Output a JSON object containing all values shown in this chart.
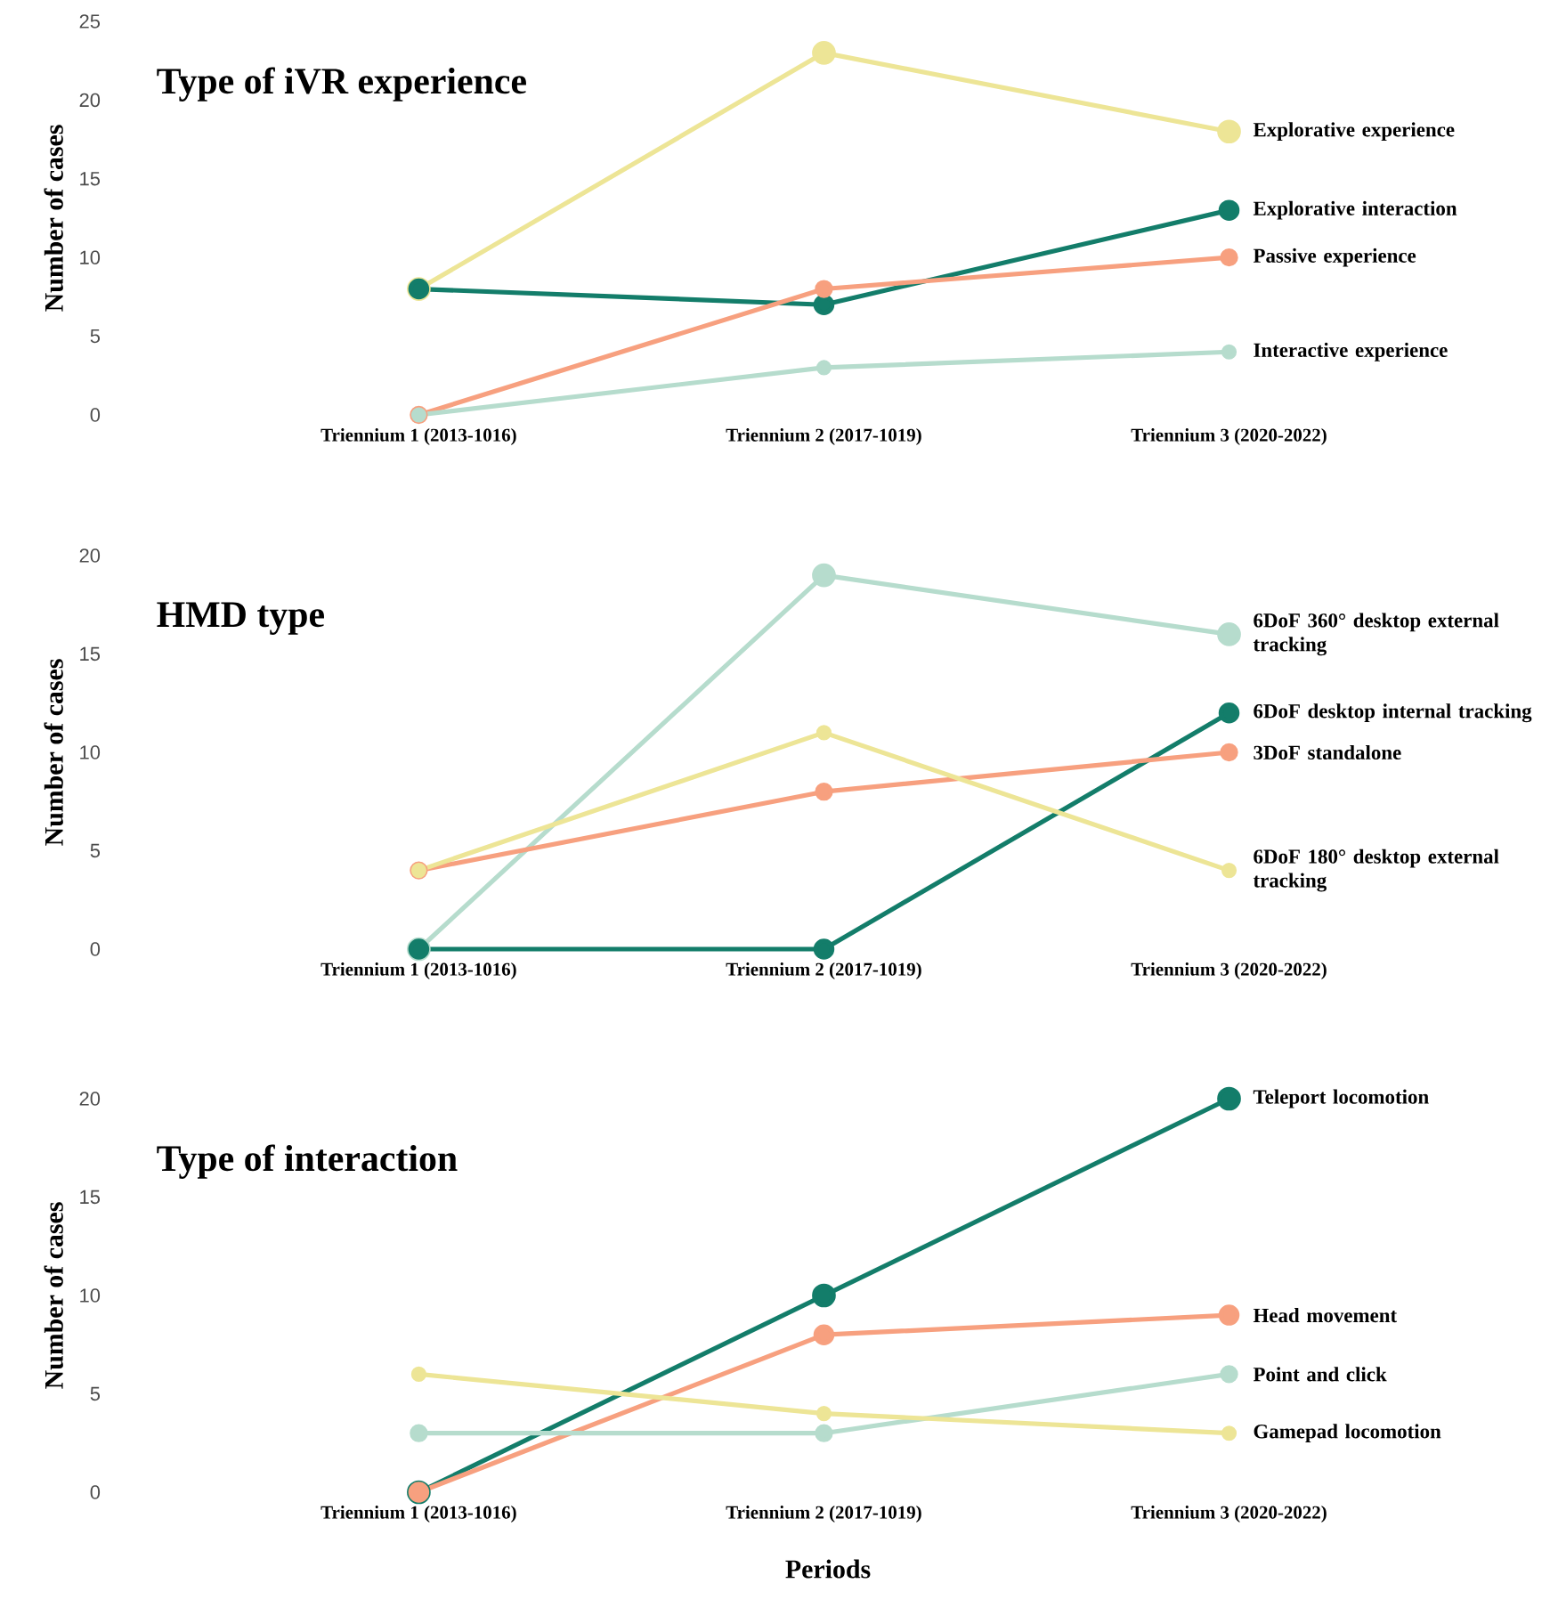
{
  "chart_data": [
    {
      "type": "line",
      "title": "Type of iVR experience",
      "ylabel": "Number of cases",
      "categories": [
        "Triennium 1 (2013-1016)",
        "Triennium 2 (2017-1019)",
        "Triennium 3 (2020-2022)"
      ],
      "ylim": [
        0,
        25
      ],
      "yticks": [
        0,
        5,
        10,
        15,
        20,
        25
      ],
      "marker": "circle",
      "series": [
        {
          "name": "Explorative experience",
          "color": "#ede596",
          "values": [
            8,
            23,
            18
          ]
        },
        {
          "name": "Explorative interaction",
          "color": "#137d6a",
          "values": [
            8,
            7,
            13
          ]
        },
        {
          "name": "Passive experience",
          "color": "#f7a07f",
          "values": [
            0,
            8,
            10
          ]
        },
        {
          "name": "Interactive experience",
          "color": "#b6dccd",
          "values": [
            0,
            3,
            4
          ]
        }
      ]
    },
    {
      "type": "line",
      "title": "HMD type",
      "ylabel": "Number of cases",
      "categories": [
        "Triennium 1 (2013-1016)",
        "Triennium 2 (2017-1019)",
        "Triennium 3 (2020-2022)"
      ],
      "ylim": [
        0,
        20
      ],
      "yticks": [
        0,
        5,
        10,
        15,
        20
      ],
      "marker": "circle",
      "series": [
        {
          "name": "6DoF 360° desktop external tracking",
          "color": "#b6dccd",
          "values": [
            0,
            19,
            16
          ]
        },
        {
          "name": "6DoF desktop internal tracking",
          "color": "#137d6a",
          "values": [
            0,
            0,
            12
          ]
        },
        {
          "name": "3DoF standalone",
          "color": "#f7a07f",
          "values": [
            4,
            8,
            10
          ]
        },
        {
          "name": "6DoF 180° desktop external tracking",
          "color": "#ede596",
          "values": [
            4,
            11,
            4
          ]
        }
      ]
    },
    {
      "type": "line",
      "title": "Type of interaction",
      "ylabel": "Number of cases",
      "xlabel": "Periods",
      "categories": [
        "Triennium 1 (2013-1016)",
        "Triennium 2 (2017-1019)",
        "Triennium 3 (2020-2022)"
      ],
      "ylim": [
        0,
        20
      ],
      "yticks": [
        0,
        5,
        10,
        15,
        20
      ],
      "marker": "circle",
      "series": [
        {
          "name": "Teleport locomotion",
          "color": "#137d6a",
          "values": [
            0,
            10,
            20
          ]
        },
        {
          "name": "Head movement",
          "color": "#f7a07f",
          "values": [
            0,
            8,
            9
          ]
        },
        {
          "name": "Point and click",
          "color": "#b6dccd",
          "values": [
            3,
            3,
            6
          ]
        },
        {
          "name": "Gamepad locomotion",
          "color": "#ede596",
          "values": [
            6,
            4,
            3
          ]
        }
      ]
    }
  ]
}
